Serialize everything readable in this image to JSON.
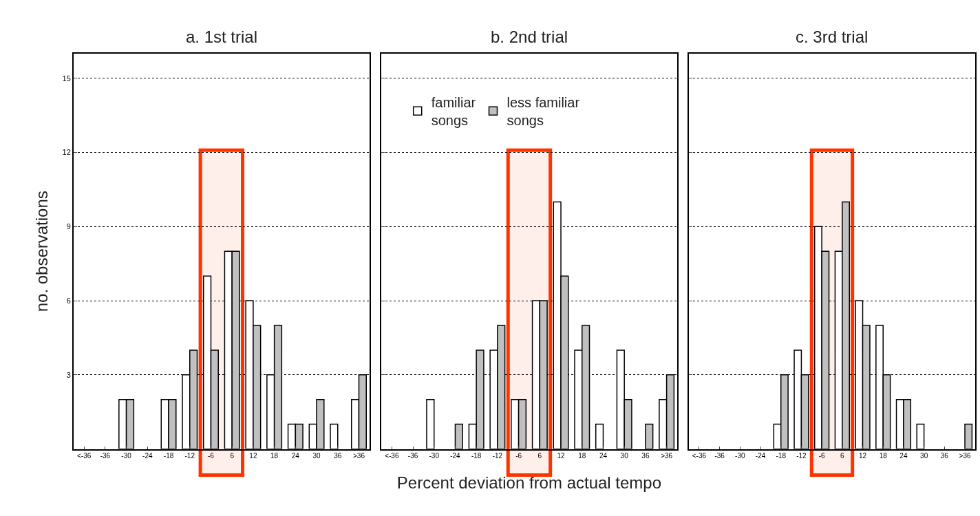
{
  "chart_data": [
    {
      "type": "bar",
      "title": "a. 1st trial",
      "ylabel": "no. observations",
      "categories": [
        "<-36",
        "-36",
        "-30",
        "-24",
        "-18",
        "-12",
        "-6",
        "6",
        "12",
        "18",
        "24",
        "30",
        "36",
        ">36"
      ],
      "series": [
        {
          "color": "#ffffff",
          "values": [
            0,
            0,
            2,
            0,
            2,
            3,
            7,
            8,
            6,
            3,
            1,
            1,
            1,
            2
          ]
        },
        {
          "color": "#c0c0c0",
          "values": [
            0,
            0,
            2,
            0,
            2,
            4,
            4,
            8,
            5,
            5,
            1,
            2,
            0,
            3
          ]
        }
      ],
      "ylim": [
        0,
        16
      ],
      "yticks": [
        3,
        6,
        9,
        12,
        15
      ],
      "grid": "y",
      "bands": [
        {
          "axis": "x",
          "from": "-6",
          "to": "6",
          "color": "#ff3300"
        }
      ]
    },
    {
      "type": "bar",
      "title": "b. 2nd trial",
      "xlabel": "Percent deviation from actual tempo",
      "categories": [
        "<-36",
        "-36",
        "-30",
        "-24",
        "-18",
        "-12",
        "-6",
        "6",
        "12",
        "18",
        "24",
        "30",
        "36",
        ">36"
      ],
      "series": [
        {
          "name": "familiar songs",
          "color": "#ffffff",
          "values": [
            0,
            0,
            2,
            0,
            1,
            4,
            2,
            6,
            10,
            4,
            1,
            4,
            0,
            2
          ]
        },
        {
          "name": "less familiar songs",
          "color": "#c0c0c0",
          "values": [
            0,
            0,
            0,
            1,
            4,
            5,
            2,
            6,
            7,
            5,
            0,
            2,
            1,
            3
          ]
        }
      ],
      "ylim": [
        0,
        16
      ],
      "yticks": [
        3,
        6,
        9,
        12,
        15
      ],
      "grid": "y",
      "tick_labels": "x",
      "legend": "top left",
      "bands": [
        {
          "axis": "x",
          "from": "-6",
          "to": "6",
          "color": "#ff3300"
        }
      ]
    },
    {
      "type": "bar",
      "title": "c. 3rd trial",
      "categories": [
        "<-36",
        "-36",
        "-30",
        "-24",
        "-18",
        "-12",
        "-6",
        "6",
        "12",
        "18",
        "24",
        "30",
        "36",
        ">36"
      ],
      "series": [
        {
          "color": "#ffffff",
          "values": [
            0,
            0,
            0,
            0,
            1,
            4,
            9,
            8,
            6,
            5,
            2,
            1,
            0,
            0
          ]
        },
        {
          "color": "#c0c0c0",
          "values": [
            0,
            0,
            0,
            0,
            3,
            3,
            8,
            10,
            5,
            3,
            2,
            0,
            0,
            1
          ]
        }
      ],
      "ylim": [
        0,
        16
      ],
      "yticks": [
        3,
        6,
        9,
        12,
        15
      ],
      "grid": "y",
      "tick_labels": "x",
      "bands": [
        {
          "axis": "x",
          "from": "-6",
          "to": "6",
          "color": "#ff3300"
        }
      ]
    }
  ]
}
